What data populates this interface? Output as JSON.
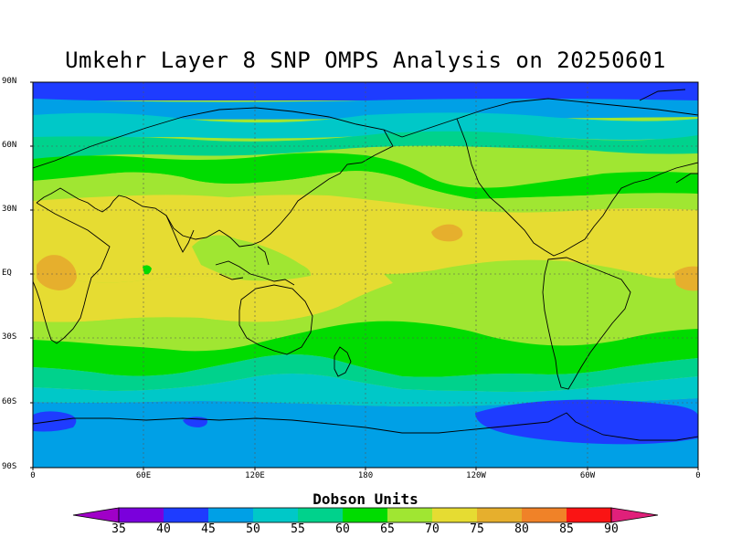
{
  "title": "Umkehr Layer 8 SNP OMPS Analysis on 20250601",
  "colorbar": {
    "title": "Dobson Units",
    "levels": [
      "35",
      "40",
      "45",
      "50",
      "55",
      "60",
      "65",
      "70",
      "75",
      "80",
      "85",
      "90"
    ],
    "low_color": "#a000c8",
    "high_color": "#e0207a",
    "colors": [
      "#7a00dc",
      "#1e3cff",
      "#00a0e6",
      "#00c8c8",
      "#00d28c",
      "#00dc00",
      "#a0e632",
      "#e6dc32",
      "#e6af2d",
      "#f08228",
      "#fa1414"
    ]
  },
  "map": {
    "lat_labels": [
      "90N",
      "60N",
      "30N",
      "EQ",
      "30S",
      "60S",
      "90S"
    ],
    "lon_labels": [
      "0",
      "60E",
      "120E",
      "180",
      "120W",
      "60W",
      "0"
    ],
    "background_color": "#a0e632"
  }
}
